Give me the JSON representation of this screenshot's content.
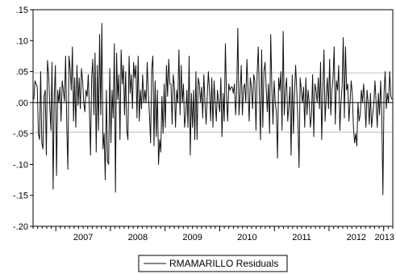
{
  "chart_data": {
    "type": "line",
    "title": "",
    "xlabel": "",
    "ylabel": "",
    "ylim": [
      -0.2,
      0.15
    ],
    "xlim": [
      "2006-08",
      "2013-03"
    ],
    "y_ticks": [
      {
        "value": 0.15,
        "label": ".15"
      },
      {
        "value": 0.1,
        "label": ".10"
      },
      {
        "value": 0.05,
        "label": ".05"
      },
      {
        "value": 0.0,
        "label": ".00"
      },
      {
        "value": -0.05,
        "label": "-.05"
      },
      {
        "value": -0.1,
        "label": "-.10"
      },
      {
        "value": -0.15,
        "label": "-.15"
      },
      {
        "value": -0.2,
        "label": "-.20"
      }
    ],
    "x_ticks": [
      "2007",
      "2008",
      "2009",
      "2010",
      "2011",
      "2012",
      "2013"
    ],
    "reference_lines": [
      0.048,
      0.0,
      -0.048
    ],
    "grid": false,
    "legend": {
      "position": "bottom-center",
      "entries": [
        "RMAMARILLO Residuals"
      ]
    },
    "colors": {
      "series": "#111111",
      "reference": "#999999",
      "axis": "#000000"
    },
    "frequency": "weekly",
    "series": [
      {
        "name": "RMAMARILLO Residuals",
        "values": [
          0.005,
          0.035,
          0.03,
          0.025,
          -0.05,
          -0.06,
          0.05,
          -0.065,
          -0.075,
          0.01,
          0.02,
          -0.085,
          0.068,
          0.045,
          -0.005,
          -0.045,
          0.065,
          -0.14,
          0.01,
          0.06,
          -0.118,
          0.02,
          0.0,
          0.025,
          -0.03,
          0.035,
          0.02,
          0.002,
          0.075,
          -0.035,
          -0.108,
          0.075,
          0.055,
          0.02,
          0.09,
          -0.03,
          0.04,
          -0.04,
          0.06,
          -0.005,
          0.04,
          -0.01,
          0.055,
          0.035,
          0.0,
          -0.015,
          0.02,
          0.01,
          0.045,
          -0.01,
          -0.085,
          0.04,
          0.07,
          -0.02,
          0.08,
          -0.08,
          0.06,
          -0.045,
          0.11,
          -0.02,
          0.128,
          -0.075,
          -0.05,
          -0.125,
          0.02,
          -0.095,
          -0.1,
          0.055,
          -0.065,
          0.02,
          -0.025,
          0.095,
          -0.145,
          0.08,
          0.005,
          0.045,
          -0.06,
          0.085,
          0.03,
          0.06,
          -0.02,
          0.05,
          -0.045,
          -0.06,
          0.075,
          0.015,
          0.045,
          -0.01,
          0.065,
          0.04,
          0.06,
          -0.025,
          0.075,
          -0.03,
          0.02,
          -0.01,
          0.045,
          0.0,
          0.02,
          0.0,
          0.065,
          0.015,
          -0.02,
          -0.065,
          0.055,
          0.075,
          -0.07,
          0.035,
          -0.055,
          0.02,
          -0.1,
          -0.06,
          -0.08,
          0.01,
          -0.05,
          0.03,
          -0.04,
          0.06,
          0.01,
          0.07,
          0.03,
          0.03,
          -0.035,
          0.045,
          0.025,
          -0.04,
          0.02,
          0.0,
          0.085,
          -0.02,
          0.06,
          0.0,
          0.03,
          -0.04,
          -0.02,
          0.02,
          -0.04,
          0.075,
          -0.085,
          0.015,
          -0.04,
          0.02,
          -0.06,
          0.05,
          -0.06,
          0.04,
          0.03,
          0.0,
          0.025,
          -0.025,
          0.045,
          0.0,
          -0.035,
          0.01,
          0.05,
          0.02,
          -0.03,
          0.04,
          -0.04,
          0.035,
          0.0,
          -0.03,
          0.02,
          0.0,
          -0.015,
          0.04,
          -0.055,
          0.015,
          -0.03,
          0.095,
          0.01,
          -0.03,
          0.03,
          0.02,
          0.025,
          0.025,
          0.015,
          0.03,
          -0.02,
          0.02,
          0.12,
          -0.02,
          0.015,
          0.06,
          -0.02,
          0.025,
          0.03,
          0.0,
          0.07,
          0.02,
          -0.03,
          0.04,
          0.025,
          -0.01,
          0.045,
          0.035,
          -0.045,
          0.045,
          0.09,
          0.01,
          -0.06,
          0.085,
          -0.04,
          0.05,
          0.065,
          0.025,
          -0.015,
          0.03,
          -0.05,
          0.11,
          0.025,
          -0.035,
          0.035,
          0.0,
          -0.015,
          -0.09,
          0.04,
          0.02,
          0.05,
          -0.045,
          0.115,
          -0.02,
          0.02,
          0.04,
          -0.03,
          -0.005,
          0.025,
          -0.085,
          0.045,
          -0.05,
          0.015,
          0.06,
          0.02,
          -0.03,
          -0.105,
          0.04,
          0.02,
          0.0,
          0.025,
          -0.04,
          0.04,
          -0.02,
          0.02,
          0.0,
          -0.04,
          -0.02,
          0.045,
          -0.055,
          0.03,
          0.02,
          0.0,
          0.04,
          -0.01,
          0.065,
          -0.06,
          0.02,
          0.085,
          -0.03,
          0.01,
          0.04,
          -0.01,
          0.07,
          -0.02,
          0.02,
          0.04,
          0.09,
          -0.035,
          0.035,
          0.02,
          0.06,
          -0.045,
          0.0,
          0.025,
          0.105,
          -0.025,
          0.09,
          0.02,
          0.03,
          -0.03,
          0.0,
          0.035,
          0.015,
          -0.04,
          -0.065,
          -0.05,
          -0.07,
          0.0,
          -0.03,
          -0.02,
          0.02,
          0.0,
          0.03,
          0.0,
          -0.04,
          0.02,
          0.0,
          -0.035,
          0.015,
          -0.04,
          -0.02,
          0.0,
          0.035,
          0.0,
          -0.04,
          0.015,
          -0.02,
          0.035,
          -0.02,
          -0.149,
          0.015,
          0.05,
          -0.01,
          0.015,
          0.0,
          0.05,
          0.01,
          0.005
        ]
      }
    ]
  }
}
